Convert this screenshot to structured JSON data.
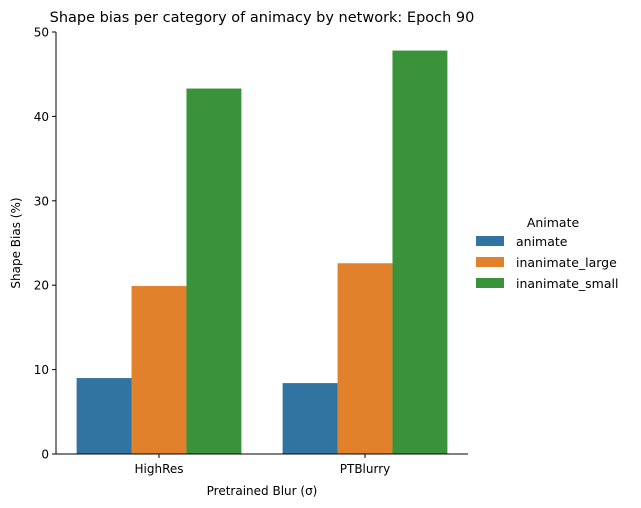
{
  "chart_data": {
    "type": "bar",
    "title": "Shape bias per category of animacy by network: Epoch 90",
    "xlabel": "Pretrained Blur (σ)",
    "ylabel": "Shape Bias (%)",
    "categories": [
      "HighRes",
      "PTBlurry"
    ],
    "ylim": [
      0,
      50
    ],
    "yticks": [
      0,
      10,
      20,
      30,
      40,
      50
    ],
    "grid": false,
    "legend": {
      "title": "Animate",
      "placement": "right"
    },
    "series": [
      {
        "name": "animate",
        "color": "#3274a1",
        "values": [
          9.0,
          8.4
        ]
      },
      {
        "name": "inanimate_large",
        "color": "#e1812c",
        "values": [
          19.9,
          22.6
        ]
      },
      {
        "name": "inanimate_small",
        "color": "#3a923a",
        "values": [
          43.3,
          47.8
        ]
      }
    ]
  }
}
